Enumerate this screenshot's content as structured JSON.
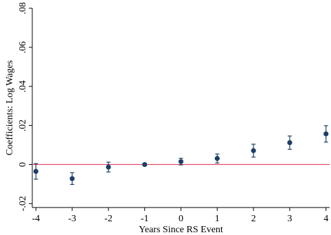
{
  "chart_data": {
    "type": "scatter",
    "title": "",
    "xlabel": "Years Since RS Event",
    "ylabel": "Coefficients: Log Wages",
    "x": [
      -4,
      -3,
      -2,
      -1,
      0,
      1,
      2,
      3,
      4
    ],
    "series": [
      {
        "values": [
          -0.0035,
          -0.0072,
          -0.0013,
          0.0,
          0.0015,
          0.0031,
          0.0071,
          0.0112,
          0.0157
        ],
        "ci_lower": [
          -0.0075,
          -0.0102,
          -0.0038,
          0.0,
          -0.0002,
          0.0008,
          0.0038,
          0.0078,
          0.0115
        ],
        "ci_upper": [
          0.0005,
          -0.0042,
          0.0012,
          0.0,
          0.0032,
          0.0054,
          0.0104,
          0.0146,
          0.0199
        ]
      }
    ],
    "xticks": [
      -4,
      -3,
      -2,
      -1,
      0,
      1,
      2,
      3,
      4
    ],
    "xtick_labels": [
      "-4",
      "-3",
      "-2",
      "-1",
      "0",
      "1",
      "2",
      "3",
      "4"
    ],
    "yticks": [
      -0.02,
      0,
      0.02,
      0.04,
      0.06,
      0.08
    ],
    "ytick_labels": [
      "-.02",
      "0",
      ".02",
      ".04",
      ".06",
      ".08"
    ],
    "xlim": [
      -4.1,
      4.1
    ],
    "ylim": [
      -0.022,
      0.08
    ],
    "reference_line_y": 0,
    "grid": false,
    "legend": "none",
    "colors": {
      "marker": "#1c3f66",
      "ci": "#1c3f66",
      "reference_line": "#e23c5d",
      "axis": "#000000"
    }
  }
}
